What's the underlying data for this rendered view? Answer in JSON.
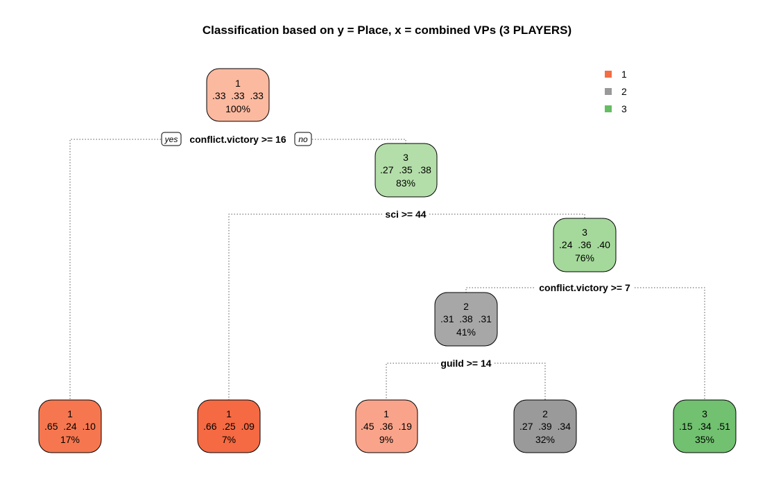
{
  "title": "Classification based on y = Place, x = combined VPs (3 PLAYERS)",
  "legend": {
    "placement": "top-right",
    "items": [
      {
        "label": "1",
        "color": "#f46d43"
      },
      {
        "label": "2",
        "color": "#999999"
      },
      {
        "label": "3",
        "color": "#66bd63"
      }
    ]
  },
  "tree": {
    "nodes": [
      {
        "id": "n1",
        "class": "1",
        "probs": ".33  .33  .33",
        "pct": "100%",
        "fill": "#fbb99f"
      },
      {
        "id": "n3",
        "class": "3",
        "probs": ".27  .35  .38",
        "pct": "83%",
        "fill": "#b4dea9"
      },
      {
        "id": "n7",
        "class": "3",
        "probs": ".24  .36  .40",
        "pct": "76%",
        "fill": "#a5d99b"
      },
      {
        "id": "n14",
        "class": "2",
        "probs": ".31  .38  .31",
        "pct": "41%",
        "fill": "#a7a7a7"
      },
      {
        "id": "n2",
        "class": "1",
        "probs": ".65  .24  .10",
        "pct": "17%",
        "fill": "#f6774f"
      },
      {
        "id": "n6",
        "class": "1",
        "probs": ".66  .25  .09",
        "pct": "7%",
        "fill": "#f56a43"
      },
      {
        "id": "n28",
        "class": "1",
        "probs": ".45  .36  .19",
        "pct": "9%",
        "fill": "#f9a48a"
      },
      {
        "id": "n29",
        "class": "2",
        "probs": ".27  .39  .34",
        "pct": "32%",
        "fill": "#9a9a9a"
      },
      {
        "id": "n15",
        "class": "3",
        "probs": ".15  .34  .51",
        "pct": "35%",
        "fill": "#71c170"
      }
    ],
    "splits": [
      {
        "id": "s1",
        "label": "conflict.victory >= 16"
      },
      {
        "id": "s3",
        "label": "sci >= 44"
      },
      {
        "id": "s7",
        "label": "conflict.victory >= 7"
      },
      {
        "id": "s14",
        "label": "guild >= 14"
      }
    ],
    "branch_labels": {
      "yes": "yes",
      "no": "no"
    }
  }
}
